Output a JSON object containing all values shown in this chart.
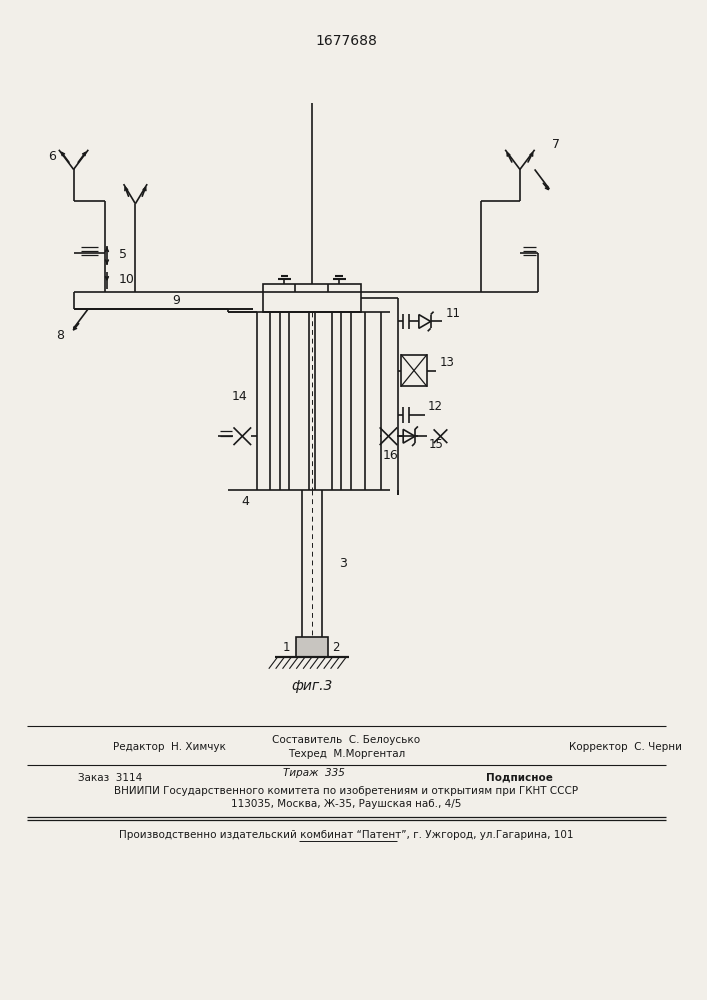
{
  "title": "1677688",
  "fig_label": "фиг.3",
  "background_color": "#f2efe9",
  "line_color": "#1a1a1a",
  "footer3": "ВНИИПИ Государственного комитета по изобретениям и открытиям при ГКНТ СССР",
  "footer4": "113035, Москва, Ж-35, Раушская наб., 4/5",
  "footer5": "Производственно издательский комбинат “Патент”, г. Ужгород, ул.Гагарина, 101"
}
